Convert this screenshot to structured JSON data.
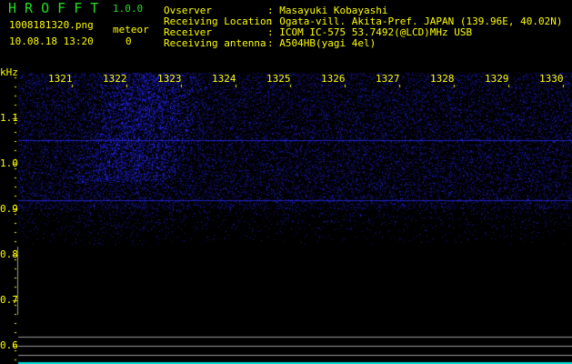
{
  "app": {
    "name": "H R O F F T",
    "version": "1.0.0"
  },
  "file": {
    "name": "1008181320.png",
    "datetime": "10.08.18 13:20"
  },
  "meteor": {
    "label": "meteor",
    "count": "0"
  },
  "info": [
    {
      "label": "Ovserver",
      "value": ": Masayuki Kobayashi"
    },
    {
      "label": "Receiving Location",
      "value": ": Ogata-vill. Akita-Pref. JAPAN (139.96E, 40.02N)"
    },
    {
      "label": "Receiver",
      "value": ": ICOM IC-575 53.7492(@LCD)MHz USB"
    },
    {
      "label": "Receiving antenna",
      "value": ": A504HB(yagi 4el)"
    }
  ],
  "spectrogram": {
    "y_unit": "kHz",
    "x_ticks": [
      "1321",
      "1322",
      "1323",
      "1324",
      "1325",
      "1326",
      "1327",
      "1328",
      "1329",
      "1330"
    ],
    "y_ticks": [
      "1.1",
      "1.0",
      "0.9",
      "0.8",
      "0.7",
      "0.6"
    ],
    "colors": {
      "text": "#ffff00",
      "title": "#22dd22",
      "noise": "#2a2aff",
      "carrier": "#2020c0",
      "marker": "#9a9a9a",
      "baseline": "#00e0e0"
    }
  }
}
